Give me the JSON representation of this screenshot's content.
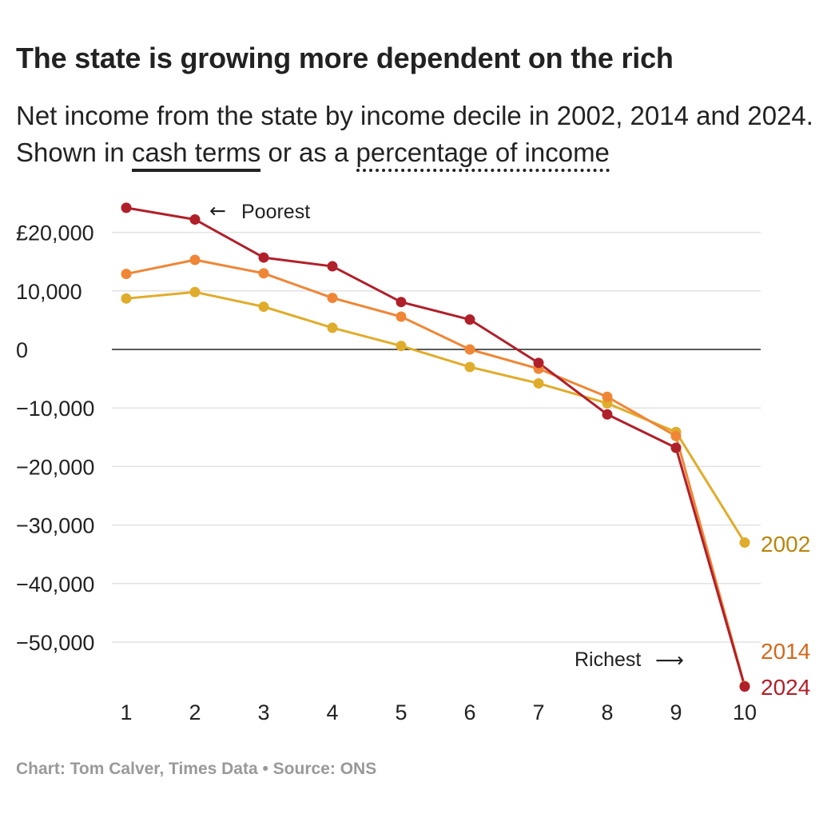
{
  "header": {
    "title": "The state is growing more dependent on the rich",
    "subtitle_pre": "Net income from the state by income decile in 2002, 2014 and 2024. Shown in ",
    "toggle_cash": "cash terms",
    "subtitle_mid": " or as a ",
    "toggle_pct": "percentage of income"
  },
  "chart_data": {
    "type": "line",
    "x": [
      1,
      2,
      3,
      4,
      5,
      6,
      7,
      8,
      9,
      10
    ],
    "ylim": [
      -58000,
      24000
    ],
    "yticks": [
      20000,
      10000,
      0,
      -10000,
      -20000,
      -30000,
      -40000,
      -50000
    ],
    "ytick_labels": [
      "£20,000",
      "10,000",
      "0",
      "−10,000",
      "−20,000",
      "−30,000",
      "−40,000",
      "−50,000"
    ],
    "grid": true,
    "series": [
      {
        "name": "2002",
        "color": "#e0ac2b",
        "label_color": "#b8860b",
        "values": [
          8700,
          9800,
          7300,
          3700,
          600,
          -3000,
          -5800,
          -9200,
          -14100,
          -33000
        ]
      },
      {
        "name": "2014",
        "color": "#ef8636",
        "label_color": "#d2691e",
        "values": [
          12900,
          15300,
          13000,
          8800,
          5600,
          0,
          -3300,
          -8100,
          -14800,
          -57500
        ]
      },
      {
        "name": "2024",
        "color": "#b0202a",
        "label_color": "#b0202a",
        "values": [
          24200,
          22200,
          15700,
          14200,
          8100,
          5100,
          -2300,
          -11100,
          -16800,
          -57600
        ]
      }
    ],
    "annotations": [
      {
        "text": "Poorest",
        "arrow": "←"
      },
      {
        "text": "Richest",
        "arrow": "⟶"
      }
    ]
  },
  "footer": "Chart: Tom Calver, Times Data • Source: ONS"
}
